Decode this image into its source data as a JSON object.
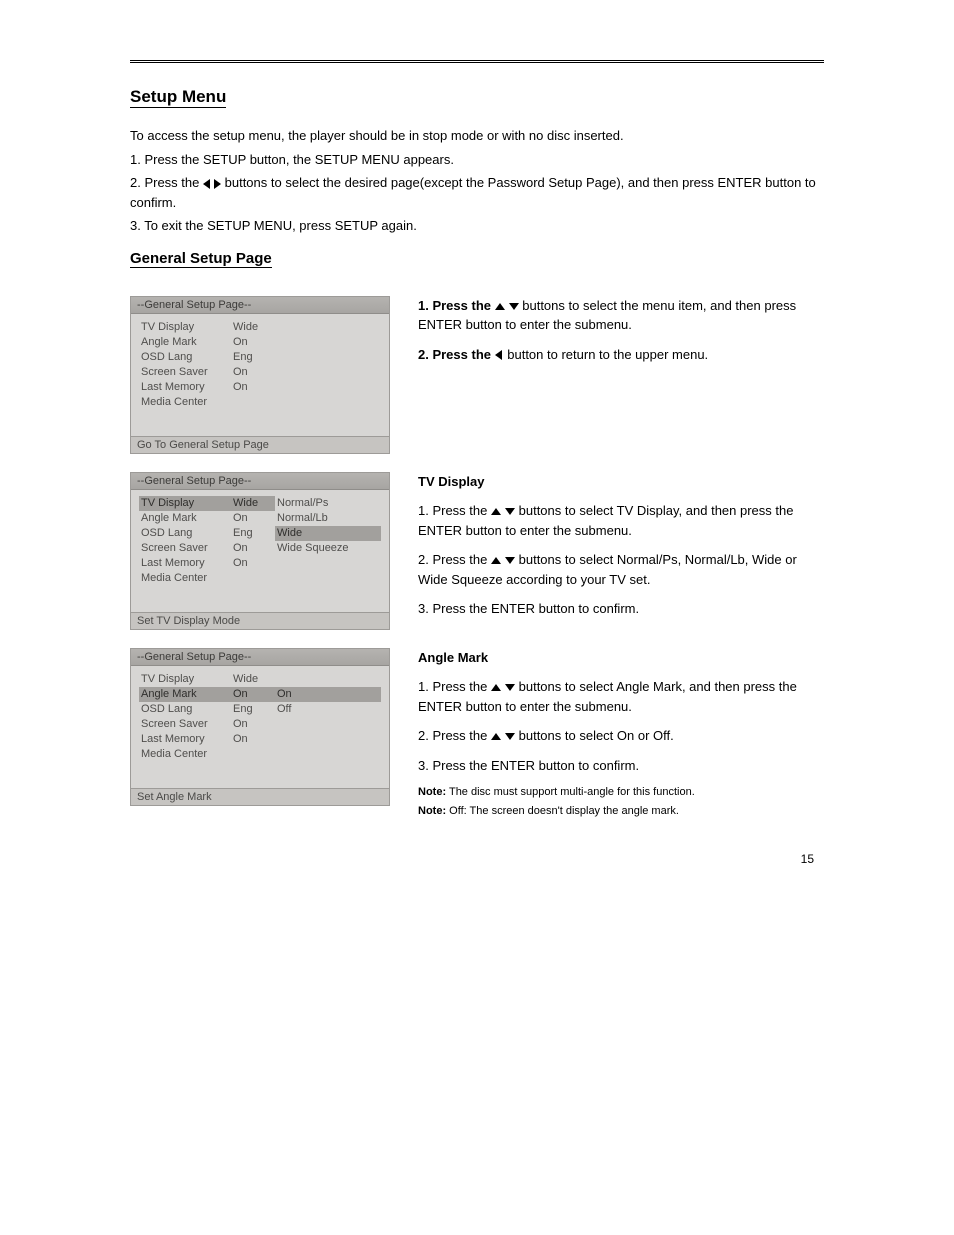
{
  "headings": {
    "setup_menu": "Setup Menu",
    "general_setup": "General Setup Page"
  },
  "intro": {
    "p1": "To access the setup menu, the player should be in stop mode or with no disc inserted.",
    "s1_pre": "1. Press the SETUP button, the SETUP MENU appears.",
    "s2_pre": "2. Press the",
    "s2_post": "buttons to select the desired page(except the Password Setup Page), and then press ENTER button to confirm.",
    "s3_pre": "3. To exit the SETUP MENU, press SETUP again."
  },
  "block1": {
    "title": "--General Setup Page--",
    "items": [
      {
        "label": "TV Display",
        "value": "Wide"
      },
      {
        "label": "Angle Mark",
        "value": "On"
      },
      {
        "label": "OSD Lang",
        "value": "Eng"
      },
      {
        "label": "Screen Saver",
        "value": "On"
      },
      {
        "label": "Last Memory",
        "value": "On"
      },
      {
        "label": "Media Center",
        "value": ""
      }
    ],
    "footer": "Go To General Setup Page",
    "right": {
      "step1_pre": "1. Press the",
      "step1_post": "buttons to select the menu item, and then press ENTER button to enter the submenu.",
      "step2_pre": "2. Press the",
      "step2_post": "button to return to the upper menu."
    }
  },
  "block2": {
    "title": "--General Setup Page--",
    "items": [
      {
        "label": "TV Display",
        "value": "Wide",
        "selL": true
      },
      {
        "label": "Angle Mark",
        "value": "On"
      },
      {
        "label": "OSD Lang",
        "value": "Eng"
      },
      {
        "label": "Screen Saver",
        "value": "On"
      },
      {
        "label": "Last Memory",
        "value": "On"
      },
      {
        "label": "Media Center",
        "value": ""
      }
    ],
    "options": [
      {
        "label": "Normal/Ps"
      },
      {
        "label": "Normal/Lb"
      },
      {
        "label": "Wide",
        "sel": true
      },
      {
        "label": "Wide Squeeze"
      }
    ],
    "footer": "Set TV Display Mode",
    "right": {
      "label": "TV Display",
      "step1_pre": "1. Press the",
      "step1_post": "buttons to select TV Display, and then press the ENTER button to enter the submenu.",
      "step2_pre": "2. Press the",
      "step2_post": "buttons to select Normal/Ps, Normal/Lb, Wide or Wide Squeeze according to your TV set.",
      "step3": "3. Press the ENTER button to confirm."
    }
  },
  "block3": {
    "title": "--General Setup Page--",
    "items": [
      {
        "label": "TV Display",
        "value": "Wide"
      },
      {
        "label": "Angle Mark",
        "value": "On",
        "selL": true
      },
      {
        "label": "OSD Lang",
        "value": "Eng"
      },
      {
        "label": "Screen Saver",
        "value": "On"
      },
      {
        "label": "Last Memory",
        "value": "On"
      },
      {
        "label": "Media Center",
        "value": ""
      }
    ],
    "options": [
      {
        "label": "On",
        "sel": true
      },
      {
        "label": "Off"
      }
    ],
    "optionsOffset": 1,
    "footer": "Set Angle Mark",
    "right": {
      "label": "Angle Mark",
      "step1_pre": "1. Press the",
      "step1_post": "buttons to select Angle Mark, and then press the ENTER button to enter the submenu.",
      "step2_pre": "2. Press the",
      "step2_post": "buttons to select On or Off.",
      "step3": "3. Press the ENTER button to confirm."
    }
  },
  "notes": {
    "n1_pre": "Note:",
    "n1_post": "The disc must support multi-angle for this function.",
    "n2_pre": "Note:",
    "n2_post": "Off: The screen doesn't display the angle mark."
  },
  "page_number": "15"
}
